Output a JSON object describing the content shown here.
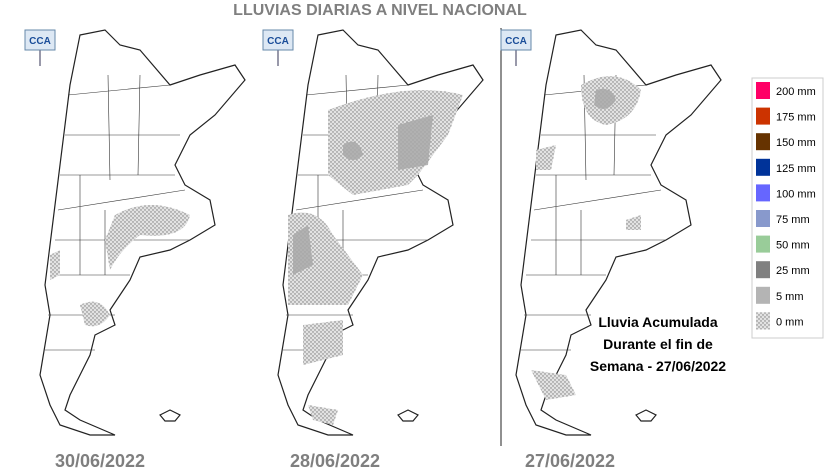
{
  "title": "LLUVIAS DIARIAS A NIVEL NACIONAL",
  "maps": [
    {
      "logo": "CCA",
      "date": "30/06/2022"
    },
    {
      "logo": "CCA",
      "date": "28/06/2022"
    },
    {
      "logo": "CCA",
      "date": "27/06/2022"
    }
  ],
  "annotation": [
    "Lluvia Acumulada",
    "Durante el fin de",
    "Semana - 27/06/2022"
  ],
  "legend": {
    "items": [
      {
        "label": "200 mm",
        "color": "#ff0066"
      },
      {
        "label": "175 mm",
        "color": "#cc3300"
      },
      {
        "label": "150 mm",
        "color": "#663300"
      },
      {
        "label": "125 mm",
        "color": "#003399"
      },
      {
        "label": "100 mm",
        "color": "#6666ff"
      },
      {
        "label": "75 mm",
        "color": "#8899cc"
      },
      {
        "label": "50 mm",
        "color": "#99cc99"
      },
      {
        "label": "25 mm",
        "color": "#808080"
      },
      {
        "label": "5 mm",
        "color": "#b4b4b4"
      },
      {
        "label": "0 mm",
        "color": "dots"
      }
    ]
  }
}
